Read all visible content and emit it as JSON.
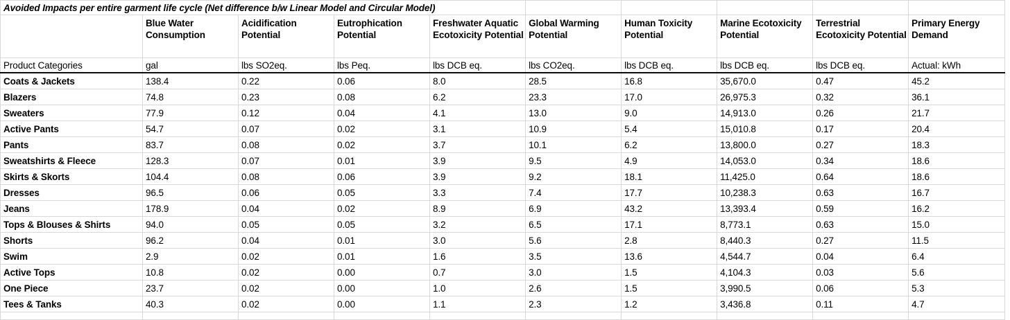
{
  "title": "Avoided Impacts per entire garment life cycle (Net difference b/w Linear Model and Circular Model)",
  "colors": {
    "background": "#ffffff",
    "text": "#000000",
    "gridline": "#d9d9d9",
    "heavy_border": "#000000"
  },
  "table": {
    "corner_label": "Product Categories",
    "columns": [
      {
        "label": "Blue Water Consumption",
        "unit": "gal"
      },
      {
        "label": "Acidification Potential",
        "unit": "lbs SO2eq."
      },
      {
        "label": "Eutrophication Potential",
        "unit": "lbs Peq."
      },
      {
        "label": "Freshwater Aquatic Ecotoxicity Potential",
        "unit": "lbs DCB eq."
      },
      {
        "label": "Global Warming Potential",
        "unit": "lbs CO2eq."
      },
      {
        "label": "Human Toxicity Potential",
        "unit": "lbs DCB eq."
      },
      {
        "label": "Marine Ecotoxicity Potential",
        "unit": "lbs DCB eq."
      },
      {
        "label": "Terrestrial Ecotoxicity Potential",
        "unit": "lbs DCB eq."
      },
      {
        "label": "Primary Energy Demand",
        "unit": "Actual: kWh"
      }
    ],
    "rows": [
      {
        "category": "Coats & Jackets",
        "values": [
          "138.4",
          "0.22",
          "0.06",
          "8.0",
          "28.5",
          "16.8",
          "35,670.0",
          "0.47",
          "45.2"
        ]
      },
      {
        "category": "Blazers",
        "values": [
          "74.8",
          "0.23",
          "0.08",
          "6.2",
          "23.3",
          "17.0",
          "26,975.3",
          "0.32",
          "36.1"
        ]
      },
      {
        "category": "Sweaters",
        "values": [
          "77.9",
          "0.12",
          "0.04",
          "4.1",
          "13.0",
          "9.0",
          "14,913.0",
          "0.26",
          "21.7"
        ]
      },
      {
        "category": "Active Pants",
        "values": [
          "54.7",
          "0.07",
          "0.02",
          "3.1",
          "10.9",
          "5.4",
          "15,010.8",
          "0.17",
          "20.4"
        ]
      },
      {
        "category": "Pants",
        "values": [
          "83.7",
          "0.08",
          "0.02",
          "3.7",
          "10.1",
          "6.2",
          "13,800.0",
          "0.27",
          "18.3"
        ]
      },
      {
        "category": "Sweatshirts & Fleece",
        "values": [
          "128.3",
          "0.07",
          "0.01",
          "3.9",
          "9.5",
          "4.9",
          "14,053.0",
          "0.34",
          "18.6"
        ]
      },
      {
        "category": "Skirts & Skorts",
        "values": [
          "104.4",
          "0.08",
          "0.06",
          "3.9",
          "9.2",
          "18.1",
          "11,425.0",
          "0.64",
          "18.6"
        ]
      },
      {
        "category": "Dresses",
        "values": [
          "96.5",
          "0.06",
          "0.05",
          "3.3",
          "7.4",
          "17.7",
          "10,238.3",
          "0.63",
          "16.7"
        ]
      },
      {
        "category": "Jeans",
        "values": [
          "178.9",
          "0.04",
          "0.02",
          "8.9",
          "6.9",
          "43.2",
          "13,393.4",
          "0.59",
          "16.2"
        ]
      },
      {
        "category": "Tops & Blouses & Shirts",
        "values": [
          "94.0",
          "0.05",
          "0.05",
          "3.2",
          "6.5",
          "17.1",
          "8,773.1",
          "0.63",
          "15.0"
        ]
      },
      {
        "category": "Shorts",
        "values": [
          "96.2",
          "0.04",
          "0.01",
          "3.0",
          "5.6",
          "2.8",
          "8,440.3",
          "0.27",
          "11.5"
        ]
      },
      {
        "category": "Swim",
        "values": [
          "2.9",
          "0.02",
          "0.01",
          "1.6",
          "3.5",
          "13.6",
          "4,544.7",
          "0.04",
          "6.4"
        ]
      },
      {
        "category": "Active Tops",
        "values": [
          "10.8",
          "0.02",
          "0.00",
          "0.7",
          "3.0",
          "1.5",
          "4,104.3",
          "0.03",
          "5.6"
        ]
      },
      {
        "category": "One Piece",
        "values": [
          "23.7",
          "0.02",
          "0.00",
          "1.0",
          "2.6",
          "1.5",
          "3,990.5",
          "0.06",
          "5.3"
        ]
      },
      {
        "category": "Tees & Tanks",
        "values": [
          "40.3",
          "0.02",
          "0.00",
          "1.1",
          "2.3",
          "1.2",
          "3,436.8",
          "0.11",
          "4.7"
        ]
      }
    ]
  }
}
